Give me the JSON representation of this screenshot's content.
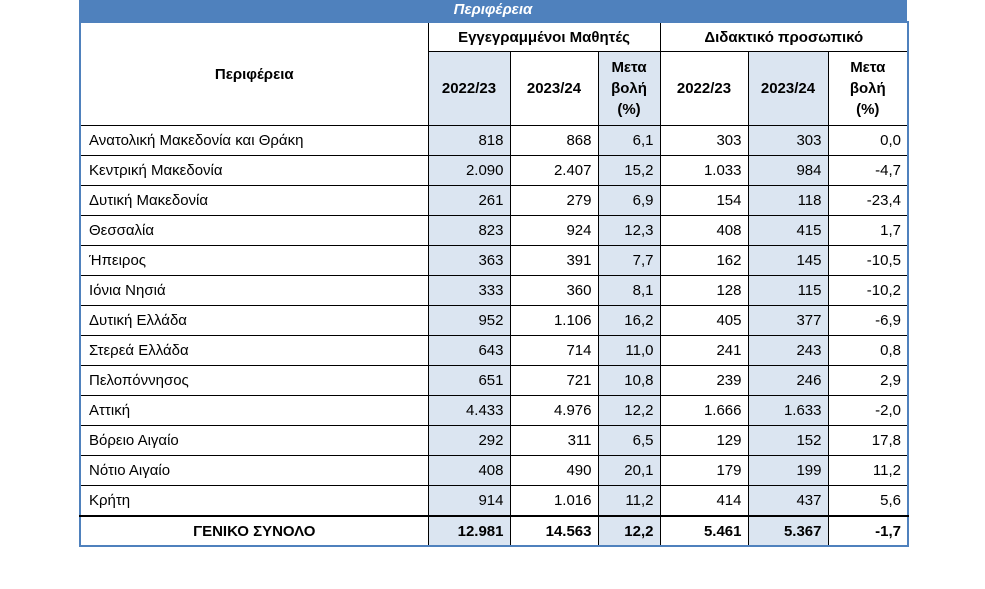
{
  "title": "Περιφέρεια",
  "headers": {
    "region": "Περιφέρεια",
    "students_group": "Εγγεγραμμένοι Μαθητές",
    "staff_group": "Διδακτικό προσωπικό",
    "year1": "2022/23",
    "year2": "2023/24",
    "change_line1": "Μετα",
    "change_line2": "βολή",
    "change_line3": "(%)"
  },
  "rows": [
    {
      "region": "Ανατολική Μακεδονία και Θράκη",
      "s1": "818",
      "s2": "868",
      "sc": "6,1",
      "t1": "303",
      "t2": "303",
      "tc": "0,0"
    },
    {
      "region": "Κεντρική Μακεδονία",
      "s1": "2.090",
      "s2": "2.407",
      "sc": "15,2",
      "t1": "1.033",
      "t2": "984",
      "tc": "-4,7"
    },
    {
      "region": "Δυτική Μακεδονία",
      "s1": "261",
      "s2": "279",
      "sc": "6,9",
      "t1": "154",
      "t2": "118",
      "tc": "-23,4"
    },
    {
      "region": "Θεσσαλία",
      "s1": "823",
      "s2": "924",
      "sc": "12,3",
      "t1": "408",
      "t2": "415",
      "tc": "1,7"
    },
    {
      "region": "Ήπειρος",
      "s1": "363",
      "s2": "391",
      "sc": "7,7",
      "t1": "162",
      "t2": "145",
      "tc": "-10,5"
    },
    {
      "region": "Ιόνια Νησιά",
      "s1": "333",
      "s2": "360",
      "sc": "8,1",
      "t1": "128",
      "t2": "115",
      "tc": "-10,2"
    },
    {
      "region": "Δυτική Ελλάδα",
      "s1": "952",
      "s2": "1.106",
      "sc": "16,2",
      "t1": "405",
      "t2": "377",
      "tc": "-6,9"
    },
    {
      "region": "Στερεά Ελλάδα",
      "s1": "643",
      "s2": "714",
      "sc": "11,0",
      "t1": "241",
      "t2": "243",
      "tc": "0,8"
    },
    {
      "region": "Πελοπόννησος",
      "s1": "651",
      "s2": "721",
      "sc": "10,8",
      "t1": "239",
      "t2": "246",
      "tc": "2,9"
    },
    {
      "region": "Αττική",
      "s1": "4.433",
      "s2": "4.976",
      "sc": "12,2",
      "t1": "1.666",
      "t2": "1.633",
      "tc": "-2,0"
    },
    {
      "region": "Βόρειο Αιγαίο",
      "s1": "292",
      "s2": "311",
      "sc": "6,5",
      "t1": "129",
      "t2": "152",
      "tc": "17,8"
    },
    {
      "region": "Νότιο Αιγαίο",
      "s1": "408",
      "s2": "490",
      "sc": "20,1",
      "t1": "179",
      "t2": "199",
      "tc": "11,2"
    },
    {
      "region": "Κρήτη",
      "s1": "914",
      "s2": "1.016",
      "sc": "11,2",
      "t1": "414",
      "t2": "437",
      "tc": "5,6"
    }
  ],
  "total": {
    "region": "ΓΕΝΙΚΟ ΣΥΝΟΛΟ",
    "s1": "12.981",
    "s2": "14.563",
    "sc": "12,2",
    "t1": "5.461",
    "t2": "5.367",
    "tc": "-1,7"
  },
  "colors": {
    "header_blue": "#4f81bd",
    "cell_shade": "#dbe5f1"
  }
}
